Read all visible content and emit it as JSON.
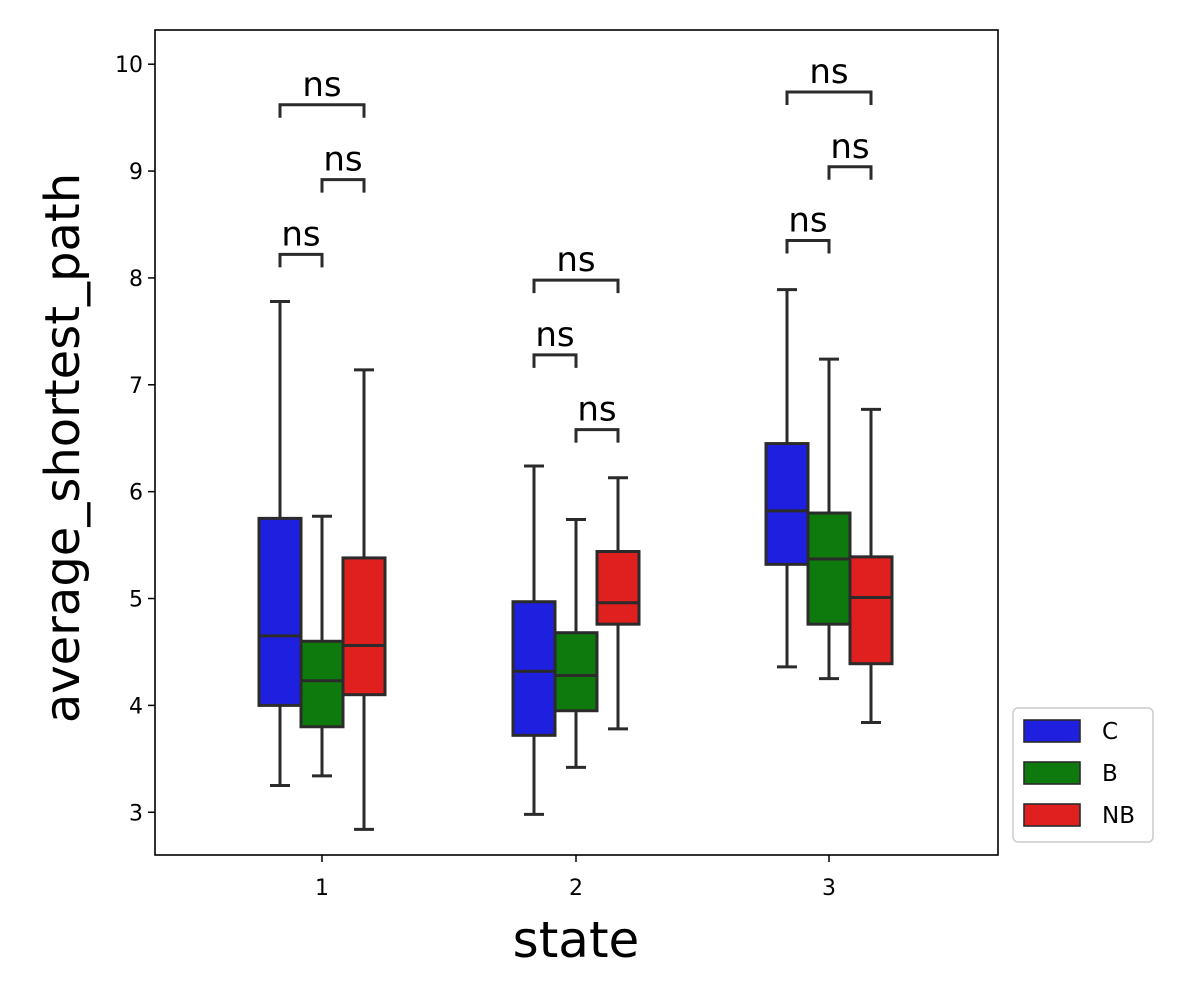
{
  "chart_data": {
    "type": "box",
    "title": "",
    "xlabel": "state",
    "ylabel": "average_shortest_path",
    "categories": [
      "1",
      "2",
      "3"
    ],
    "ylim": [
      2.6,
      10.32
    ],
    "yticks": [
      3,
      4,
      5,
      6,
      7,
      8,
      9,
      10
    ],
    "grid": false,
    "legend_position": "lower-right-outside",
    "series": [
      {
        "name": "C",
        "color": "#1f1fe0",
        "boxes": [
          {
            "category": "1",
            "whisker_low": 3.25,
            "q1": 4.0,
            "median": 4.65,
            "q3": 5.75,
            "whisker_high": 7.78
          },
          {
            "category": "2",
            "whisker_low": 2.98,
            "q1": 3.72,
            "median": 4.32,
            "q3": 4.97,
            "whisker_high": 6.24
          },
          {
            "category": "3",
            "whisker_low": 4.36,
            "q1": 5.32,
            "median": 5.82,
            "q3": 6.45,
            "whisker_high": 7.89
          }
        ]
      },
      {
        "name": "B",
        "color": "#0e7a0e",
        "boxes": [
          {
            "category": "1",
            "whisker_low": 3.34,
            "q1": 3.8,
            "median": 4.23,
            "q3": 4.6,
            "whisker_high": 5.77
          },
          {
            "category": "2",
            "whisker_low": 3.42,
            "q1": 3.95,
            "median": 4.28,
            "q3": 4.68,
            "whisker_high": 5.74
          },
          {
            "category": "3",
            "whisker_low": 4.25,
            "q1": 4.76,
            "median": 5.37,
            "q3": 5.8,
            "whisker_high": 7.24
          }
        ]
      },
      {
        "name": "NB",
        "color": "#e01f1f",
        "boxes": [
          {
            "category": "1",
            "whisker_low": 2.84,
            "q1": 4.1,
            "median": 4.56,
            "q3": 5.38,
            "whisker_high": 7.14
          },
          {
            "category": "2",
            "whisker_low": 3.78,
            "q1": 4.76,
            "median": 4.96,
            "q3": 5.44,
            "whisker_high": 6.13
          },
          {
            "category": "3",
            "whisker_low": 3.84,
            "q1": 4.39,
            "median": 5.01,
            "q3": 5.39,
            "whisker_high": 6.77
          }
        ]
      }
    ],
    "annotations": [
      {
        "category": "1",
        "from": "C",
        "to": "B",
        "y": 8.22,
        "text": "ns"
      },
      {
        "category": "1",
        "from": "B",
        "to": "NB",
        "y": 8.92,
        "text": "ns"
      },
      {
        "category": "1",
        "from": "C",
        "to": "NB",
        "y": 9.62,
        "text": "ns"
      },
      {
        "category": "2",
        "from": "C",
        "to": "B",
        "y": 7.28,
        "text": "ns"
      },
      {
        "category": "2",
        "from": "B",
        "to": "NB",
        "y": 6.58,
        "text": "ns"
      },
      {
        "category": "2",
        "from": "C",
        "to": "NB",
        "y": 7.98,
        "text": "ns"
      },
      {
        "category": "3",
        "from": "C",
        "to": "B",
        "y": 8.35,
        "text": "ns"
      },
      {
        "category": "3",
        "from": "B",
        "to": "NB",
        "y": 9.04,
        "text": "ns"
      },
      {
        "category": "3",
        "from": "C",
        "to": "NB",
        "y": 9.74,
        "text": "ns"
      }
    ]
  }
}
